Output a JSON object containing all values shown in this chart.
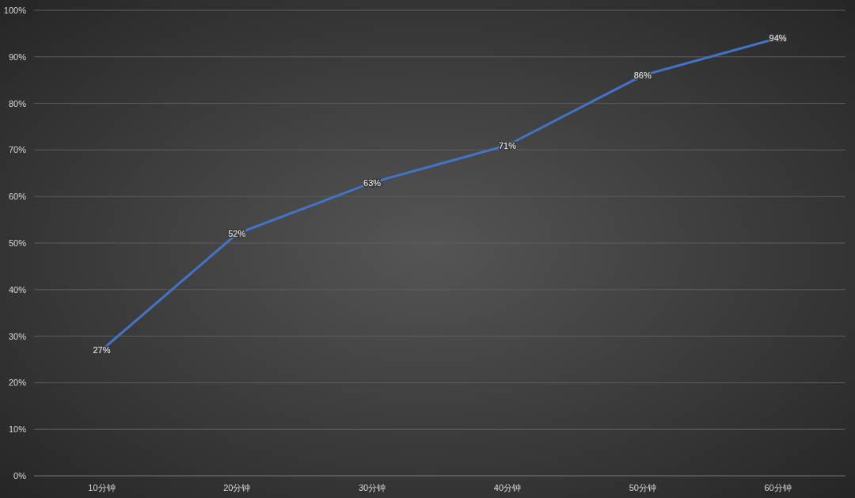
{
  "chart_data": {
    "type": "line",
    "categories": [
      "10分钟",
      "20分钟",
      "30分钟",
      "40分钟",
      "50分钟",
      "60分钟"
    ],
    "series": [
      {
        "color": "#4472c4",
        "values": [
          27,
          52,
          63,
          71,
          86,
          94
        ],
        "value_labels": [
          "27%",
          "52%",
          "63%",
          "71%",
          "86%",
          "94%"
        ]
      }
    ],
    "ylim": [
      0,
      100
    ],
    "yticks": [
      {
        "value": 0,
        "label": "0%"
      },
      {
        "value": 10,
        "label": "10%"
      },
      {
        "value": 20,
        "label": "20%"
      },
      {
        "value": 30,
        "label": "30%"
      },
      {
        "value": 40,
        "label": "40%"
      },
      {
        "value": 50,
        "label": "50%"
      },
      {
        "value": 60,
        "label": "60%"
      },
      {
        "value": 70,
        "label": "70%"
      },
      {
        "value": 80,
        "label": "80%"
      },
      {
        "value": 90,
        "label": "90%"
      },
      {
        "value": 100,
        "label": "100%"
      }
    ],
    "grid": "y",
    "marker": "none",
    "line_style": "solid"
  }
}
